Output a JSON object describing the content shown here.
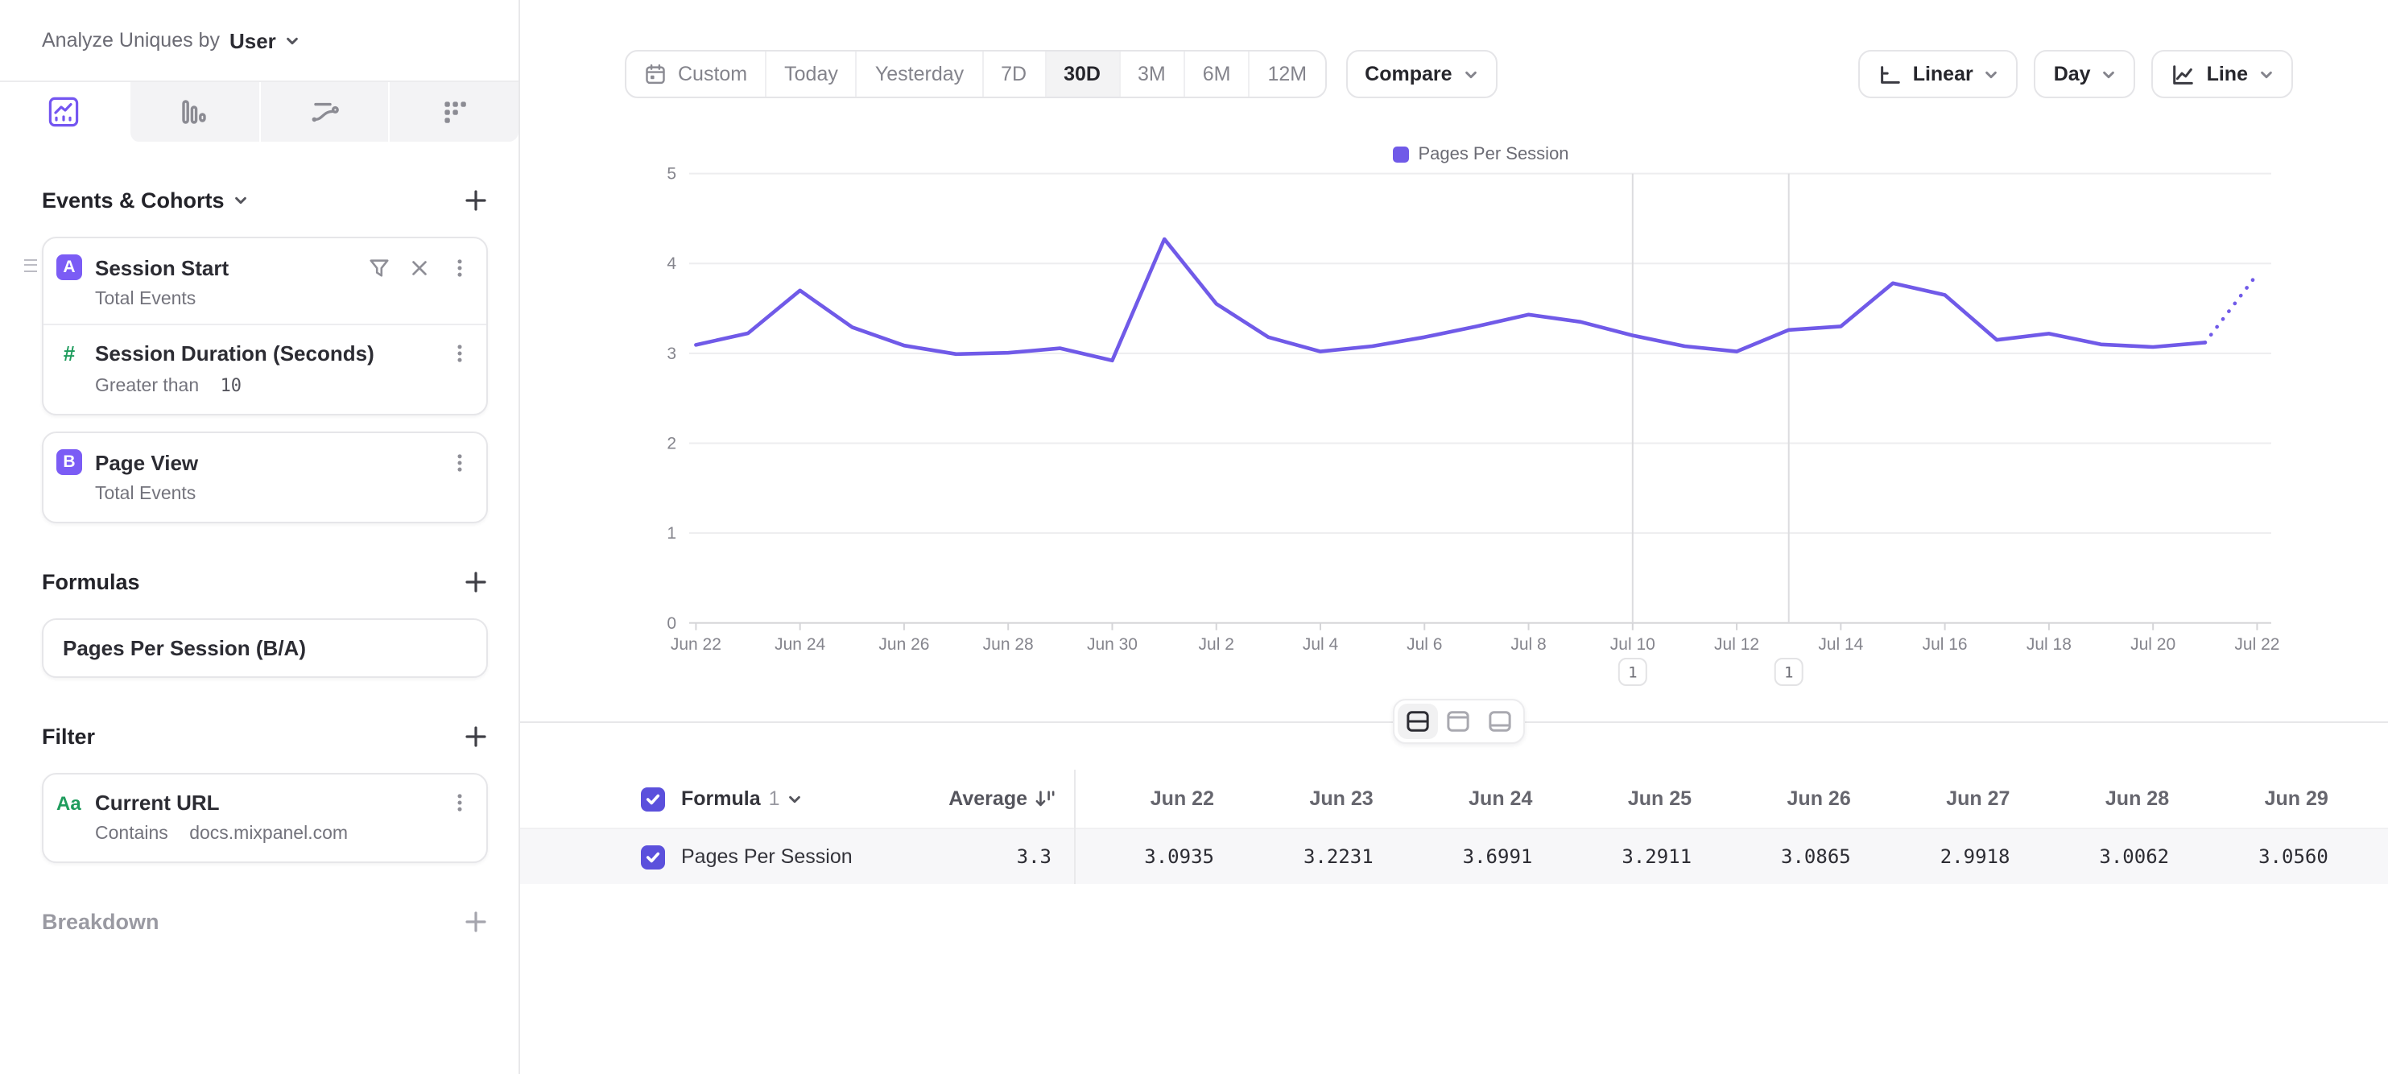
{
  "sidebar": {
    "analyze_label": "Analyze Uniques by",
    "analyze_value": "User",
    "events_section": {
      "title": "Events & Cohorts"
    },
    "events": [
      {
        "badge": "A",
        "name": "Session Start",
        "measure": "Total Events",
        "property_filter": {
          "icon": "#",
          "name": "Session Duration (Seconds)",
          "operator": "Greater than",
          "value": "10"
        }
      },
      {
        "badge": "B",
        "name": "Page View",
        "measure": "Total Events"
      }
    ],
    "formulas_section": {
      "title": "Formulas"
    },
    "formulas": [
      {
        "name": "Pages Per Session (B/A)"
      }
    ],
    "filter_section": {
      "title": "Filter"
    },
    "filters": [
      {
        "icon": "Aa",
        "name": "Current URL",
        "operator": "Contains",
        "value": "docs.mixpanel.com"
      }
    ],
    "breakdown_section": {
      "title": "Breakdown"
    }
  },
  "toolbar": {
    "ranges": [
      "Custom",
      "Today",
      "Yesterday",
      "7D",
      "30D",
      "3M",
      "6M",
      "12M"
    ],
    "selected_range": "30D",
    "compare_label": "Compare",
    "scale_label": "Linear",
    "interval_label": "Day",
    "chart_type_label": "Line"
  },
  "chart_data": {
    "type": "line",
    "legend_position": "top-center",
    "grid": true,
    "ylim": [
      0,
      5
    ],
    "yticks": [
      0,
      1,
      2,
      3,
      4,
      5
    ],
    "x": [
      "Jun 22",
      "Jun 23",
      "Jun 24",
      "Jun 25",
      "Jun 26",
      "Jun 27",
      "Jun 28",
      "Jun 29",
      "Jun 30",
      "Jul 1",
      "Jul 2",
      "Jul 3",
      "Jul 4",
      "Jul 5",
      "Jul 6",
      "Jul 7",
      "Jul 8",
      "Jul 9",
      "Jul 10",
      "Jul 11",
      "Jul 12",
      "Jul 13",
      "Jul 14",
      "Jul 15",
      "Jul 16",
      "Jul 17",
      "Jul 18",
      "Jul 19",
      "Jul 20",
      "Jul 21",
      "Jul 22"
    ],
    "x_tick_step": 2,
    "series": [
      {
        "name": "Pages Per Session",
        "color": "#705ae8",
        "values": [
          3.0935,
          3.2231,
          3.6991,
          3.2911,
          3.0865,
          2.9918,
          3.0062,
          3.056,
          2.92,
          4.27,
          3.55,
          3.18,
          3.02,
          3.08,
          3.18,
          3.3,
          3.43,
          3.35,
          3.2,
          3.08,
          3.02,
          3.26,
          3.3,
          3.78,
          3.65,
          3.15,
          3.22,
          3.1,
          3.07,
          3.12,
          3.88
        ]
      }
    ],
    "incomplete_last_segment_dotted": true,
    "annotations": [
      {
        "x_label": "Jul 10",
        "count": "1"
      },
      {
        "x_label": "Jul 13",
        "count": "1"
      }
    ]
  },
  "table": {
    "group_label": "Formula",
    "group_number": "1",
    "average_label": "Average",
    "columns": [
      "Jun 22",
      "Jun 23",
      "Jun 24",
      "Jun 25",
      "Jun 26",
      "Jun 27",
      "Jun 28",
      "Jun 29"
    ],
    "rows": [
      {
        "label": "Pages Per Session",
        "average": "3.3",
        "values": [
          "3.0935",
          "3.2231",
          "3.6991",
          "3.2911",
          "3.0865",
          "2.9918",
          "3.0062",
          "3.0560"
        ]
      }
    ]
  },
  "colors": {
    "accent_purple": "#7b5cf5",
    "checkbox_purple": "#5b50dc",
    "line_purple": "#705ae8",
    "green_property": "#1f9c5d",
    "row_bg": "#f7f7f9",
    "gridline": "#ededef",
    "axis_line": "#d5d5d8",
    "annotation_line": "#dcdcdf"
  }
}
